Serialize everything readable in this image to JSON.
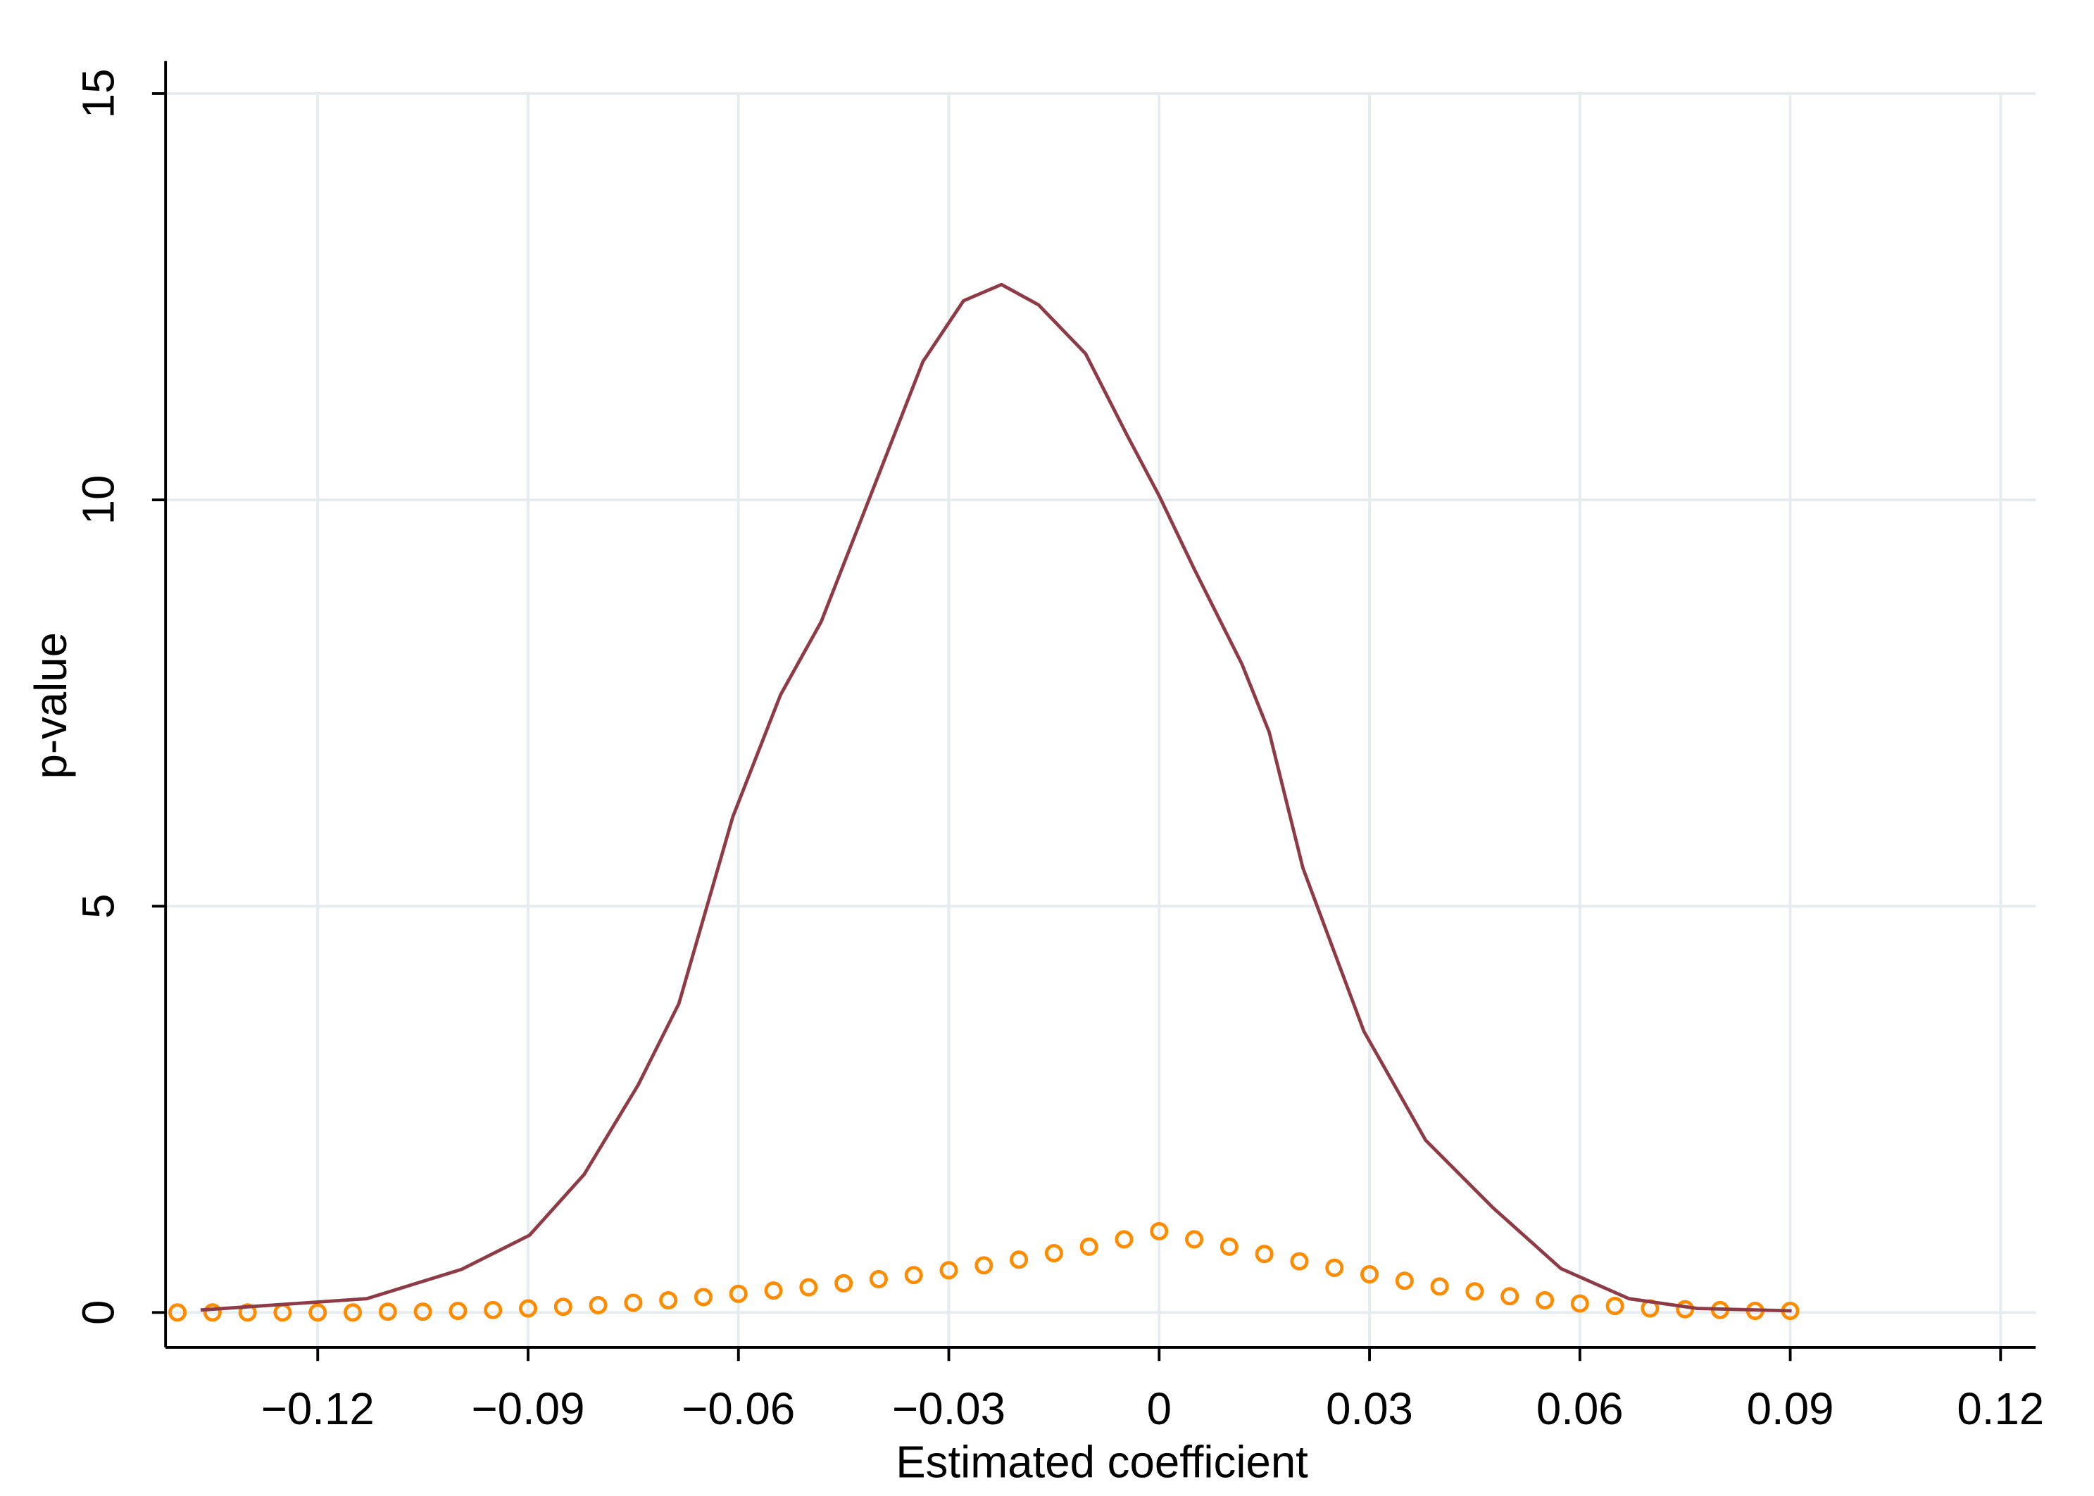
{
  "chart_data": {
    "type": "scatter",
    "x_label": "Estimated coefficient",
    "y_label": "p-value",
    "xlim": [
      -0.1417,
      0.125
    ],
    "ylim": [
      -0.43,
      15.4
    ],
    "xticks": [
      {
        "value": -0.12,
        "label": "−0.12"
      },
      {
        "value": -0.09,
        "label": "−0.09"
      },
      {
        "value": -0.06,
        "label": "−0.06"
      },
      {
        "value": -0.03,
        "label": "−0.03"
      },
      0,
      {
        "value": 0.03,
        "label": "0.03"
      },
      {
        "value": 0.06,
        "label": "0.06"
      },
      {
        "value": 0.09,
        "label": "0.09"
      },
      {
        "value": 0.12,
        "label": "0.12"
      }
    ],
    "yticks": [
      0,
      5,
      10,
      15
    ],
    "grid": true,
    "series": [
      {
        "type": "scatter",
        "color": "#ff8c00",
        "x": [
          -0.14,
          -0.135,
          -0.13,
          -0.125,
          -0.12,
          -0.115,
          -0.11,
          -0.105,
          -0.1,
          -0.095,
          -0.09,
          -0.085,
          -0.08,
          -0.075,
          -0.07,
          -0.065,
          -0.06,
          -0.055,
          -0.05,
          -0.045,
          -0.04,
          -0.035,
          -0.03,
          -0.025,
          -0.02,
          -0.015,
          -0.01,
          -0.005,
          0,
          0.005,
          0.01,
          0.015,
          0.02,
          0.025,
          0.03,
          0.035,
          0.04,
          0.045,
          0.05,
          0.055,
          0.06,
          0.065,
          0.07,
          0.075,
          0.08,
          0.085,
          0.09
        ],
        "values": [
          0,
          0,
          0,
          0,
          0,
          0,
          0.01,
          0.01,
          0.02,
          0.03,
          0.05,
          0.07,
          0.09,
          0.12,
          0.15,
          0.19,
          0.23,
          0.27,
          0.31,
          0.36,
          0.41,
          0.46,
          0.52,
          0.58,
          0.65,
          0.73,
          0.81,
          0.9,
          1,
          0.9,
          0.81,
          0.72,
          0.63,
          0.55,
          0.47,
          0.39,
          0.32,
          0.26,
          0.2,
          0.15,
          0.11,
          0.08,
          0.05,
          0.04,
          0.03,
          0.02,
          0.02
        ]
      },
      {
        "type": "line",
        "color": "#8f3b45",
        "x": [
          -0.1367,
          -0.113,
          -0.0995,
          -0.0898,
          -0.082,
          -0.0743,
          -0.0685,
          -0.0608,
          -0.054,
          -0.0482,
          -0.0414,
          -0.0337,
          -0.0279,
          -0.0225,
          -0.0172,
          -0.0105,
          -0.0046,
          0,
          0.005,
          0.0118,
          0.0157,
          0.0205,
          0.0292,
          0.038,
          0.0476,
          0.0573,
          0.067,
          0.0767,
          0.0902
        ],
        "values": [
          0.03,
          0.17,
          0.53,
          0.95,
          1.7,
          2.8,
          3.8,
          6.1,
          7.6,
          8.5,
          10.0,
          11.7,
          12.45,
          12.65,
          12.4,
          11.8,
          10.8,
          10.05,
          9.15,
          7.98,
          7.14,
          5.47,
          3.46,
          2.12,
          1.29,
          0.54,
          0.17,
          0.05,
          0.02
        ]
      }
    ]
  }
}
